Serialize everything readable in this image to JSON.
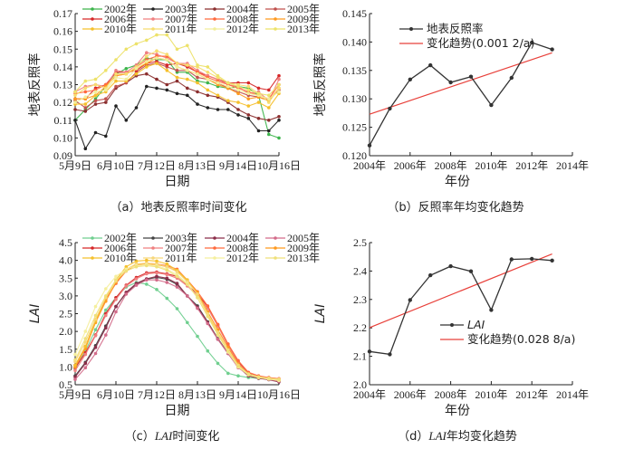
{
  "chart_data": [
    {
      "id": "a",
      "type": "line",
      "caption": "（a）地表反照率时间变化",
      "xlabel": "日期",
      "ylabel": "地表反照率",
      "ylim": [
        0.09,
        0.17
      ],
      "yticks": [
        "0.09",
        "0.10",
        "0.11",
        "0.12",
        "0.13",
        "0.14",
        "0.15",
        "0.16",
        "0.17"
      ],
      "xticks": [
        "5月9日",
        "6月10日",
        "7月12日",
        "8月13日",
        "9月14日",
        "10月16日"
      ],
      "x_points": 21,
      "series": [
        {
          "name": "2002年",
          "color": "#3cb44b",
          "values": [
            0.11,
            0.116,
            0.122,
            0.129,
            0.136,
            0.139,
            0.141,
            0.145,
            0.144,
            0.144,
            0.137,
            0.137,
            0.132,
            0.131,
            0.129,
            0.128,
            0.129,
            0.128,
            0.124,
            0.102,
            0.1
          ]
        },
        {
          "name": "2003年",
          "color": "#222222",
          "values": [
            0.11,
            0.094,
            0.103,
            0.101,
            0.118,
            0.11,
            0.117,
            0.129,
            0.128,
            0.127,
            0.125,
            0.124,
            0.119,
            0.117,
            0.116,
            0.116,
            0.113,
            0.111,
            0.104,
            0.104,
            0.11
          ]
        },
        {
          "name": "2004年",
          "color": "#8b2e2e",
          "values": [
            0.116,
            0.115,
            0.119,
            0.12,
            0.128,
            0.131,
            0.135,
            0.136,
            0.133,
            0.13,
            0.132,
            0.128,
            0.126,
            0.124,
            0.123,
            0.12,
            0.116,
            0.113,
            0.111,
            0.11,
            0.112
          ]
        },
        {
          "name": "2005年",
          "color": "#c0504d",
          "values": [
            0.121,
            0.117,
            0.121,
            0.122,
            0.129,
            0.131,
            0.137,
            0.141,
            0.142,
            0.14,
            0.138,
            0.138,
            0.134,
            0.133,
            0.131,
            0.128,
            0.126,
            0.124,
            0.123,
            0.121,
            0.127
          ]
        },
        {
          "name": "2006年",
          "color": "#d62728",
          "values": [
            0.122,
            0.122,
            0.128,
            0.13,
            0.137,
            0.137,
            0.138,
            0.142,
            0.143,
            0.141,
            0.142,
            0.14,
            0.137,
            0.135,
            0.133,
            0.131,
            0.131,
            0.131,
            0.128,
            0.127,
            0.135
          ]
        },
        {
          "name": "2007年",
          "color": "#f08080",
          "values": [
            0.126,
            0.129,
            0.13,
            0.129,
            0.138,
            0.137,
            0.141,
            0.148,
            0.147,
            0.145,
            0.142,
            0.142,
            0.138,
            0.135,
            0.133,
            0.13,
            0.129,
            0.125,
            0.126,
            0.121,
            0.133
          ]
        },
        {
          "name": "2008年",
          "color": "#ff6a3d",
          "values": [
            0.125,
            0.126,
            0.127,
            0.13,
            0.135,
            0.136,
            0.14,
            0.144,
            0.146,
            0.146,
            0.142,
            0.141,
            0.137,
            0.134,
            0.132,
            0.13,
            0.128,
            0.126,
            0.124,
            0.122,
            0.13
          ]
        },
        {
          "name": "2009年",
          "color": "#ff9a1f",
          "values": [
            0.122,
            0.122,
            0.124,
            0.129,
            0.135,
            0.136,
            0.139,
            0.142,
            0.145,
            0.144,
            0.14,
            0.138,
            0.136,
            0.133,
            0.13,
            0.128,
            0.125,
            0.122,
            0.123,
            0.121,
            0.128
          ]
        },
        {
          "name": "2010年",
          "color": "#f5c02c",
          "values": [
            0.119,
            0.119,
            0.124,
            0.126,
            0.132,
            0.132,
            0.136,
            0.14,
            0.142,
            0.138,
            0.134,
            0.133,
            0.131,
            0.127,
            0.124,
            0.121,
            0.12,
            0.118,
            0.12,
            0.117,
            0.125
          ]
        },
        {
          "name": "2011年",
          "color": "#f7dc6f",
          "values": [
            0.124,
            0.128,
            0.13,
            0.128,
            0.136,
            0.136,
            0.14,
            0.146,
            0.149,
            0.147,
            0.142,
            0.141,
            0.14,
            0.137,
            0.134,
            0.131,
            0.13,
            0.129,
            0.125,
            0.12,
            0.128
          ]
        },
        {
          "name": "2012年",
          "color": "#f2ee9a",
          "values": [
            0.12,
            0.123,
            0.126,
            0.127,
            0.134,
            0.133,
            0.139,
            0.143,
            0.145,
            0.144,
            0.14,
            0.138,
            0.136,
            0.133,
            0.131,
            0.129,
            0.127,
            0.125,
            0.124,
            0.122,
            0.126
          ]
        },
        {
          "name": "2013年",
          "color": "#ede26a",
          "values": [
            0.126,
            0.132,
            0.133,
            0.138,
            0.144,
            0.15,
            0.153,
            0.155,
            0.158,
            0.158,
            0.15,
            0.152,
            0.141,
            0.14,
            0.135,
            0.131,
            0.129,
            0.127,
            0.125,
            0.124,
            0.13
          ]
        }
      ]
    },
    {
      "id": "b",
      "type": "line",
      "caption": "（b）反照率年均变化趋势",
      "xlabel": "年份",
      "ylabel": "地表反照率",
      "xlim": [
        2004,
        2014
      ],
      "ylim": [
        0.12,
        0.145
      ],
      "yticks": [
        "0.120",
        "0.125",
        "0.130",
        "0.135",
        "0.140",
        "0.145"
      ],
      "xticks": [
        "2004年",
        "2006年",
        "2008年",
        "2010年",
        "2012年",
        "2014年"
      ],
      "legend_position": "top-left",
      "series": [
        {
          "name": "地表反照率",
          "color": "#333333",
          "x": [
            2004,
            2005,
            2006,
            2007,
            2008,
            2009,
            2010,
            2011,
            2012,
            2013
          ],
          "values": [
            0.1218,
            0.1283,
            0.1334,
            0.1359,
            0.1329,
            0.1339,
            0.1289,
            0.1337,
            0.1399,
            0.1387
          ]
        },
        {
          "name": "变化趋势(0.001 2/a)",
          "color": "#e8403a",
          "x": [
            2004,
            2013
          ],
          "values": [
            0.1273,
            0.1381
          ],
          "kind": "trend"
        }
      ]
    },
    {
      "id": "c",
      "type": "line",
      "caption_prefix": "（c）",
      "caption_italic": "LAI",
      "caption_suffix": "时间变化",
      "xlabel": "日期",
      "ylabel": "LAI",
      "ylim": [
        0.5,
        4.5
      ],
      "yticks": [
        "0.5",
        "1.0",
        "1.5",
        "2.0",
        "2.5",
        "3.0",
        "3.5",
        "4.0",
        "4.5"
      ],
      "xticks": [
        "5月9日",
        "6月10日",
        "7月12日",
        "8月13日",
        "9月14日",
        "10月16日"
      ],
      "x_points": 21,
      "series": [
        {
          "name": "2002年",
          "color": "#6fcf8f",
          "values": [
            0.95,
            1.45,
            2.05,
            2.6,
            2.95,
            3.25,
            3.38,
            3.33,
            3.18,
            2.93,
            2.64,
            2.25,
            1.86,
            1.45,
            1.1,
            0.82,
            0.75,
            0.7,
            0.68,
            0.66,
            0.62
          ]
        },
        {
          "name": "2003年",
          "color": "#444444",
          "values": [
            0.75,
            1.13,
            1.6,
            2.15,
            2.7,
            3.08,
            3.33,
            3.47,
            3.52,
            3.47,
            3.32,
            3.0,
            2.72,
            2.27,
            1.8,
            1.4,
            1.02,
            0.78,
            0.7,
            0.65,
            0.6
          ]
        },
        {
          "name": "2004年",
          "color": "#8b2e4a",
          "values": [
            0.72,
            1.1,
            1.55,
            2.1,
            2.7,
            3.1,
            3.35,
            3.48,
            3.55,
            3.5,
            3.35,
            3.0,
            2.68,
            2.25,
            1.78,
            1.38,
            1.0,
            0.75,
            0.68,
            0.64,
            0.58
          ]
        },
        {
          "name": "2005年",
          "color": "#d36b8a",
          "values": [
            0.65,
            0.98,
            1.38,
            1.9,
            2.55,
            3.05,
            3.3,
            3.45,
            3.45,
            3.38,
            3.25,
            3.0,
            2.65,
            2.22,
            1.78,
            1.38,
            0.98,
            0.78,
            0.7,
            0.65,
            0.6
          ]
        },
        {
          "name": "2006年",
          "color": "#d62728",
          "values": [
            0.98,
            1.4,
            1.9,
            2.5,
            2.95,
            3.3,
            3.52,
            3.65,
            3.67,
            3.62,
            3.55,
            3.3,
            3.05,
            2.7,
            2.18,
            1.62,
            1.15,
            0.82,
            0.72,
            0.68,
            0.64
          ]
        },
        {
          "name": "2007年",
          "color": "#f08080",
          "values": [
            0.9,
            1.35,
            1.88,
            2.45,
            2.9,
            3.28,
            3.48,
            3.62,
            3.65,
            3.6,
            3.5,
            3.28,
            3.0,
            2.65,
            2.15,
            1.6,
            1.12,
            0.8,
            0.72,
            0.68,
            0.65
          ]
        },
        {
          "name": "2008年",
          "color": "#ff6a3d",
          "values": [
            1.05,
            1.55,
            2.3,
            2.9,
            3.35,
            3.7,
            3.88,
            3.92,
            3.9,
            3.85,
            3.75,
            3.45,
            3.12,
            2.72,
            2.2,
            1.65,
            1.18,
            0.85,
            0.75,
            0.7,
            0.67
          ]
        },
        {
          "name": "2009年",
          "color": "#ff9a1f",
          "values": [
            1.0,
            1.52,
            2.25,
            2.85,
            3.38,
            3.72,
            3.88,
            3.9,
            3.88,
            3.82,
            3.7,
            3.42,
            3.1,
            2.55,
            2.05,
            1.55,
            1.08,
            0.8,
            0.72,
            0.68,
            0.65
          ]
        },
        {
          "name": "2010年",
          "color": "#f5c02c",
          "values": [
            1.05,
            1.58,
            2.3,
            2.95,
            3.45,
            3.82,
            3.98,
            4.0,
            3.98,
            3.9,
            3.72,
            3.45,
            3.05,
            2.48,
            1.95,
            1.45,
            1.02,
            0.78,
            0.7,
            0.66,
            0.62
          ]
        },
        {
          "name": "2011年",
          "color": "#f7d77a",
          "values": [
            1.15,
            1.7,
            2.35,
            2.95,
            3.42,
            3.75,
            3.9,
            3.92,
            3.9,
            3.82,
            3.68,
            3.4,
            3.05,
            2.5,
            1.98,
            1.48,
            1.05,
            0.8,
            0.72,
            0.68,
            0.65
          ]
        },
        {
          "name": "2012年",
          "color": "#f5ef9e",
          "values": [
            1.35,
            2.0,
            2.7,
            3.2,
            3.55,
            3.75,
            3.85,
            3.88,
            3.85,
            3.75,
            3.6,
            3.35,
            2.95,
            2.42,
            1.9,
            1.42,
            1.0,
            0.78,
            0.7,
            0.66,
            0.62
          ]
        },
        {
          "name": "2013年",
          "color": "#efe07a",
          "values": [
            1.2,
            1.8,
            2.45,
            3.0,
            3.45,
            3.7,
            3.82,
            3.85,
            3.82,
            3.72,
            3.55,
            3.32,
            2.95,
            2.42,
            1.92,
            1.45,
            1.02,
            0.8,
            0.72,
            0.68,
            0.65
          ]
        }
      ]
    },
    {
      "id": "d",
      "type": "line",
      "caption_prefix": "（d）",
      "caption_italic": "LAI",
      "caption_suffix": "年均变化趋势",
      "xlabel": "年份",
      "ylabel": "LAI",
      "xlim": [
        2004,
        2014
      ],
      "ylim": [
        2.0,
        2.5
      ],
      "yticks": [
        "2.0",
        "2.1",
        "2.2",
        "2.3",
        "2.4",
        "2.5"
      ],
      "xticks": [
        "2004年",
        "2006年",
        "2008年",
        "2010年",
        "2012年",
        "2014年"
      ],
      "legend_position": "center-right",
      "series": [
        {
          "name": "LAI",
          "color": "#333333",
          "x": [
            2004,
            2005,
            2006,
            2007,
            2008,
            2009,
            2010,
            2011,
            2012,
            2013
          ],
          "values": [
            2.117,
            2.107,
            2.298,
            2.385,
            2.417,
            2.399,
            2.263,
            2.441,
            2.443,
            2.437
          ]
        },
        {
          "name": "变化趋势(0.028 8/a)",
          "color": "#e8403a",
          "x": [
            2004,
            2013
          ],
          "values": [
            2.201,
            2.46
          ],
          "kind": "trend"
        }
      ]
    }
  ]
}
